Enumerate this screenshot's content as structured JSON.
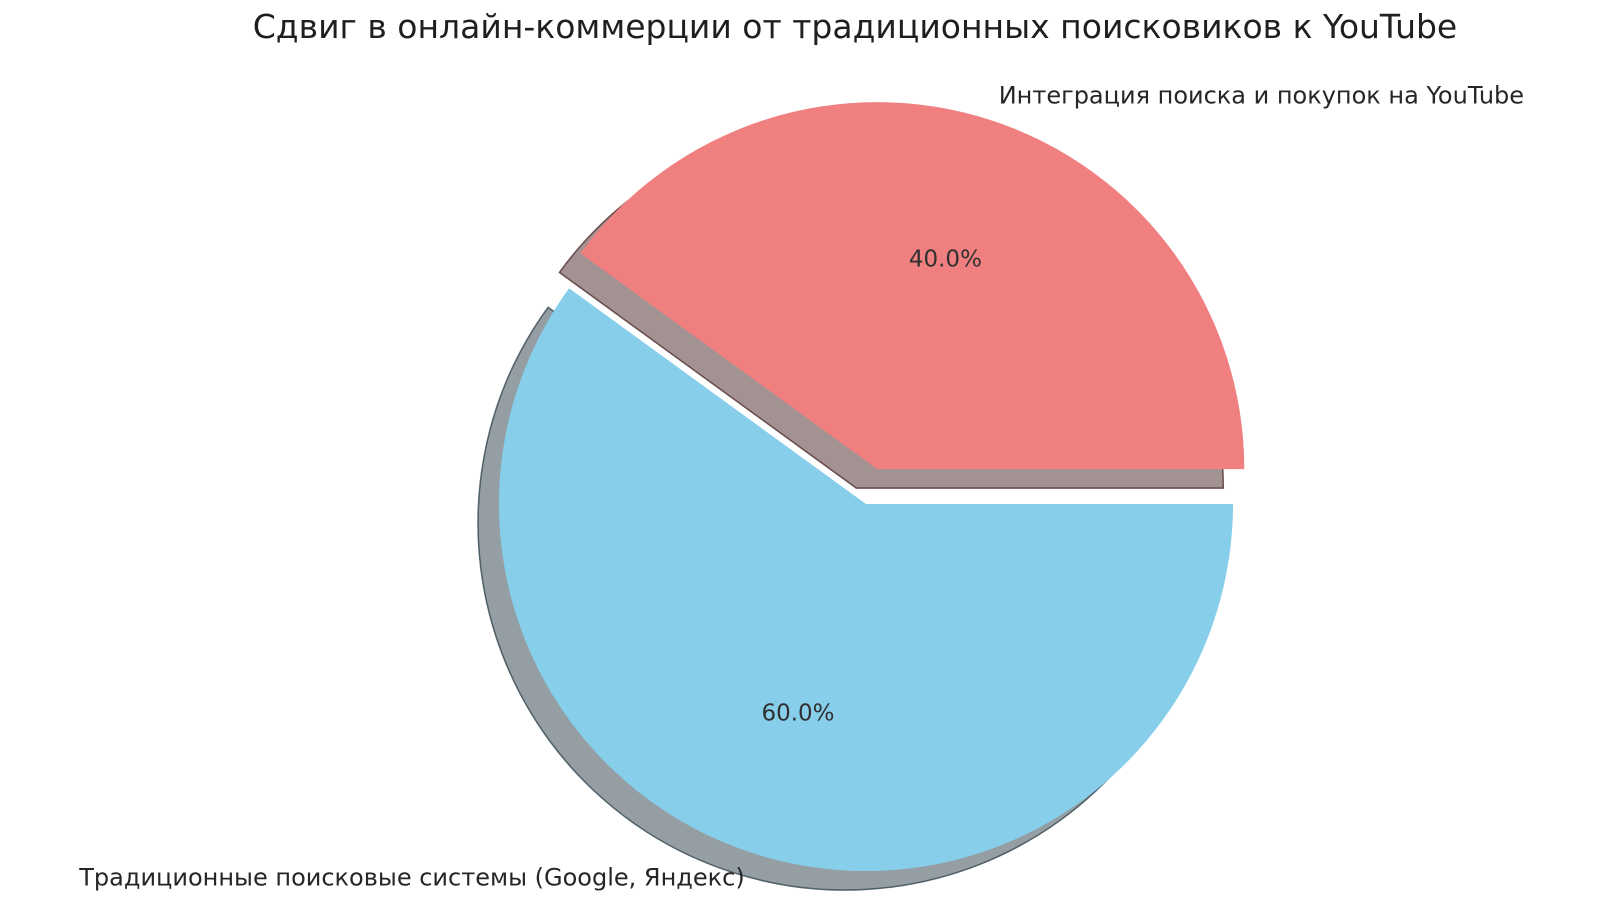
{
  "title": "Сдвиг в онлайн-коммерции от традиционных поисковиков к YouTube",
  "chart_data": {
    "type": "pie",
    "title": "Сдвиг в онлайн-коммерции от традиционных поисковиков к YouTube",
    "slices": [
      {
        "label": "Интеграция поиска и покупок на YouTube",
        "value": 40.0,
        "pct_label": "40.0%",
        "color": "#F08080",
        "explode": 0.1
      },
      {
        "label": "Традиционные поисковые системы (Google, Яндекс)",
        "value": 60.0,
        "pct_label": "60.0%",
        "color": "#87CEEB",
        "explode": 0.0
      }
    ],
    "startangle": 0,
    "counterclock": true,
    "shadow": true,
    "autopct": "%1.1f%%",
    "legend": "none",
    "background_color": "#ffffff",
    "title_color": "#1f1f1f",
    "label_color": "#262626",
    "pct_color": "#303030"
  }
}
